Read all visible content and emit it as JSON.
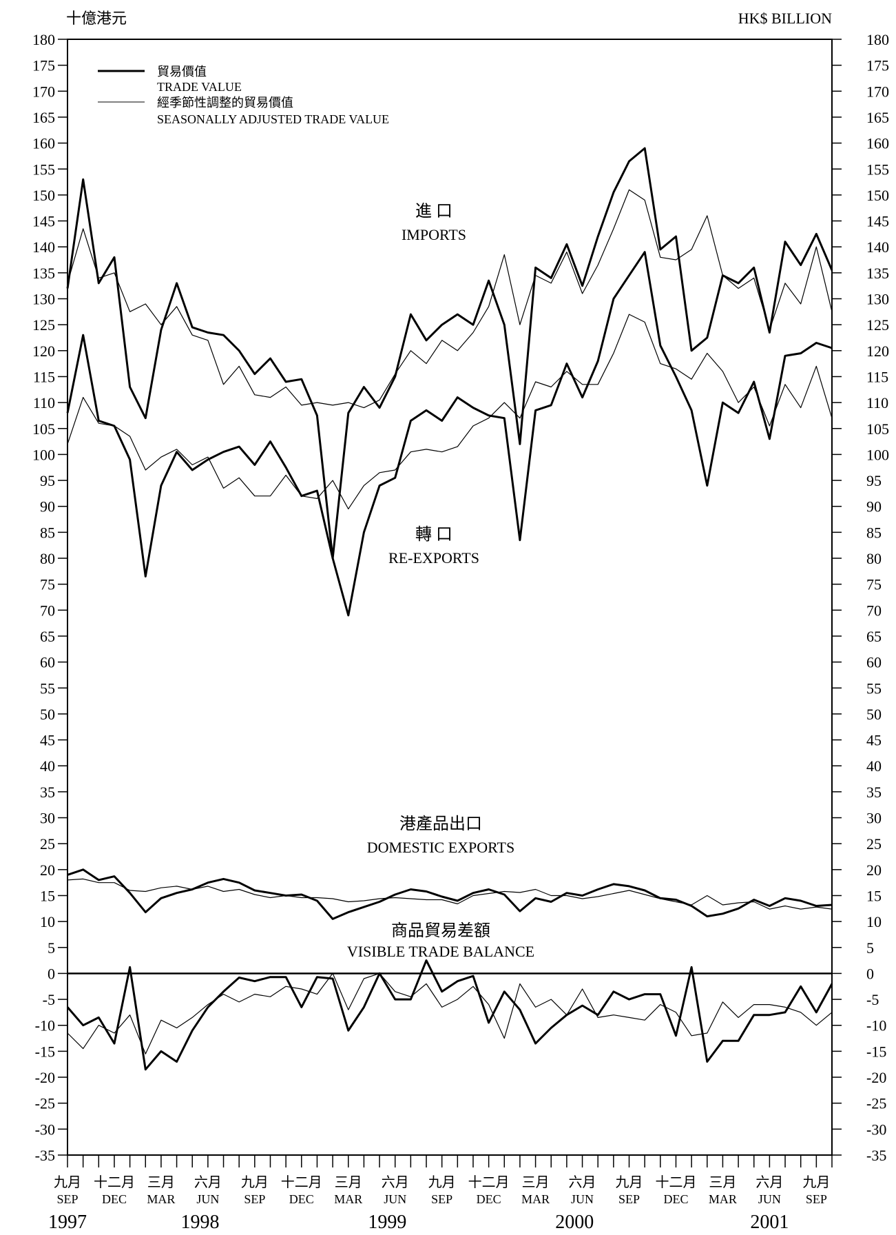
{
  "units": {
    "left": "十億港元",
    "right": "HK$ BILLION"
  },
  "colors": {
    "line": "#000000",
    "background": "#ffffff"
  },
  "legend": {
    "items": [
      {
        "cn": "貿易價值",
        "en": "TRADE VALUE",
        "style": "thick"
      },
      {
        "cn": "經季節性調整的貿易價值",
        "en": "SEASONALLY ADJUSTED TRADE VALUE",
        "style": "thin"
      }
    ]
  },
  "series_labels": {
    "imports": {
      "cn": "進 口",
      "en": "IMPORTS"
    },
    "reexports": {
      "cn": "轉 口",
      "en": "RE-EXPORTS"
    },
    "domestic": {
      "cn": "港產品出口",
      "en": "DOMESTIC EXPORTS"
    },
    "balance": {
      "cn": "商品貿易差額",
      "en": "VISIBLE TRADE BALANCE"
    }
  },
  "x_axis": {
    "month_labels": [
      {
        "index": 0,
        "cn": "九月",
        "en": "SEP"
      },
      {
        "index": 3,
        "cn": "十二月",
        "en": "DEC"
      },
      {
        "index": 6,
        "cn": "三月",
        "en": "MAR"
      },
      {
        "index": 9,
        "cn": "六月",
        "en": "JUN"
      },
      {
        "index": 12,
        "cn": "九月",
        "en": "SEP"
      },
      {
        "index": 15,
        "cn": "十二月",
        "en": "DEC"
      },
      {
        "index": 18,
        "cn": "三月",
        "en": "MAR"
      },
      {
        "index": 21,
        "cn": "六月",
        "en": "JUN"
      },
      {
        "index": 24,
        "cn": "九月",
        "en": "SEP"
      },
      {
        "index": 27,
        "cn": "十二月",
        "en": "DEC"
      },
      {
        "index": 30,
        "cn": "三月",
        "en": "MAR"
      },
      {
        "index": 33,
        "cn": "六月",
        "en": "JUN"
      },
      {
        "index": 36,
        "cn": "九月",
        "en": "SEP"
      },
      {
        "index": 39,
        "cn": "十二月",
        "en": "DEC"
      },
      {
        "index": 42,
        "cn": "三月",
        "en": "MAR"
      },
      {
        "index": 45,
        "cn": "六月",
        "en": "JUN"
      },
      {
        "index": 48,
        "cn": "九月",
        "en": "SEP"
      }
    ],
    "year_labels": [
      {
        "text": "1997",
        "index": 0
      },
      {
        "text": "1998",
        "index": 8.5
      },
      {
        "text": "1999",
        "index": 20.5
      },
      {
        "text": "2000",
        "index": 32.5
      },
      {
        "text": "2001",
        "index": 45
      }
    ]
  },
  "chart_data": {
    "type": "line",
    "x_start": "1997-09",
    "x_end": "2001-10",
    "frequency": "monthly",
    "ylim": [
      -35,
      180
    ],
    "ytick_step": 5,
    "grid": false,
    "legend_position": "top-left",
    "series": [
      {
        "name": "進口 IMPORTS — 貿易價值 TRADE VALUE",
        "style": "thick",
        "values": [
          132.0,
          153.0,
          133.0,
          138.0,
          113.0,
          107.0,
          124.0,
          133.0,
          124.5,
          123.5,
          123.0,
          120.0,
          115.5,
          118.5,
          114.0,
          114.5,
          107.5,
          80.0,
          108.0,
          113.0,
          109.0,
          115.0,
          127.0,
          122.0,
          125.0,
          127.0,
          125.0,
          133.5,
          125.0,
          102.0,
          136.0,
          134.0,
          140.5,
          132.5,
          142.0,
          150.5,
          156.5,
          159.0,
          139.5,
          142.0,
          120.0,
          122.5,
          134.5,
          133.0,
          136.0,
          123.5,
          141.0,
          136.5,
          142.5,
          135.5
        ]
      },
      {
        "name": "進口 IMPORTS — 經季節性調整的貿易價值 SEASONALLY ADJUSTED TRADE VALUE",
        "style": "thin",
        "values": [
          133.0,
          143.5,
          134.0,
          135.0,
          127.5,
          129.0,
          125.0,
          128.5,
          123.0,
          122.0,
          113.5,
          117.0,
          111.5,
          111.0,
          113.0,
          109.5,
          110.0,
          109.5,
          110.0,
          109.0,
          110.5,
          115.5,
          120.0,
          117.5,
          122.0,
          120.0,
          123.5,
          128.5,
          138.5,
          125.0,
          134.5,
          133.0,
          139.0,
          131.0,
          136.5,
          143.5,
          151.0,
          149.0,
          138.0,
          137.5,
          139.5,
          146.0,
          134.5,
          132.0,
          134.0,
          124.0,
          133.0,
          129.0,
          140.0,
          127.5
        ]
      },
      {
        "name": "轉口 RE-EXPORTS — 貿易價值 TRADE VALUE",
        "style": "thick",
        "values": [
          108.0,
          123.0,
          106.5,
          105.5,
          99.0,
          76.5,
          94.0,
          100.5,
          97.0,
          99.0,
          100.5,
          101.5,
          98.0,
          102.5,
          97.5,
          92.0,
          93.0,
          80.0,
          69.0,
          85.0,
          94.0,
          95.5,
          106.5,
          108.5,
          106.5,
          111.0,
          109.0,
          107.5,
          107.0,
          83.5,
          108.5,
          109.5,
          117.5,
          111.0,
          118.0,
          130.0,
          134.5,
          139.0,
          121.0,
          115.0,
          108.5,
          94.0,
          110.0,
          108.0,
          114.0,
          103.0,
          119.0,
          119.5,
          121.5,
          120.5
        ]
      },
      {
        "name": "轉口 RE-EXPORTS — 經季節性調整的貿易價值 SEASONALLY ADJUSTED TRADE VALUE",
        "style": "thin",
        "values": [
          102.0,
          111.0,
          106.0,
          105.5,
          103.5,
          97.0,
          99.5,
          101.0,
          98.0,
          99.5,
          93.5,
          95.5,
          92.0,
          92.0,
          96.0,
          92.0,
          91.5,
          95.0,
          89.5,
          94.0,
          96.5,
          97.0,
          100.5,
          101.0,
          100.5,
          101.5,
          105.5,
          107.0,
          110.0,
          107.0,
          114.0,
          113.0,
          116.0,
          113.5,
          113.5,
          119.5,
          127.0,
          125.5,
          117.5,
          116.5,
          114.5,
          119.5,
          116.0,
          110.0,
          113.0,
          105.5,
          113.5,
          109.0,
          117.0,
          107.0
        ]
      },
      {
        "name": "港產品出口 DOMESTIC EXPORTS — 貿易價值 TRADE VALUE",
        "style": "thick",
        "values": [
          19.0,
          20.0,
          18.0,
          18.7,
          15.5,
          11.8,
          14.5,
          15.5,
          16.2,
          17.5,
          18.2,
          17.5,
          16.0,
          15.5,
          15.0,
          15.2,
          14.0,
          10.5,
          11.8,
          12.8,
          13.8,
          15.2,
          16.2,
          15.8,
          14.8,
          14.0,
          15.5,
          16.2,
          15.2,
          12.0,
          14.5,
          13.8,
          15.5,
          15.0,
          16.2,
          17.2,
          16.8,
          16.0,
          14.5,
          14.2,
          13.0,
          11.0,
          11.5,
          12.5,
          14.2,
          13.0,
          14.5,
          14.0,
          13.0,
          13.2
        ]
      },
      {
        "name": "港產品出口 DOMESTIC EXPORTS — 經季節性調整的貿易價值 SEASONALLY ADJUSTED TRADE VALUE",
        "style": "thin",
        "values": [
          18.0,
          18.2,
          17.5,
          17.5,
          16.0,
          15.8,
          16.5,
          16.8,
          16.2,
          16.8,
          15.8,
          16.2,
          15.2,
          14.6,
          15.0,
          14.6,
          14.6,
          14.4,
          13.8,
          14.0,
          14.4,
          14.6,
          14.4,
          14.2,
          14.2,
          13.4,
          15.0,
          15.4,
          15.8,
          15.6,
          16.2,
          15.0,
          15.0,
          14.4,
          14.8,
          15.4,
          16.0,
          15.2,
          14.4,
          13.8,
          13.2,
          15.0,
          13.2,
          13.6,
          13.8,
          12.4,
          13.0,
          12.4,
          12.8,
          12.4
        ]
      },
      {
        "name": "商品貿易差額 VISIBLE TRADE BALANCE — 貿易價值 TRADE VALUE",
        "style": "thick",
        "values": [
          -6.5,
          -10.0,
          -8.5,
          -13.5,
          1.2,
          -18.5,
          -15.0,
          -17.0,
          -11.0,
          -6.5,
          -3.5,
          -0.8,
          -1.5,
          -0.7,
          -0.7,
          -6.5,
          -0.7,
          -1.0,
          -11.0,
          -6.5,
          0.0,
          -5.0,
          -5.0,
          2.5,
          -3.5,
          -1.5,
          -0.5,
          -9.5,
          -3.5,
          -7.0,
          -13.5,
          -10.5,
          -8.0,
          -6.2,
          -8.0,
          -3.5,
          -5.0,
          -4.0,
          -4.0,
          -12.0,
          1.2,
          -17.0,
          -13.0,
          -13.0,
          -8.0,
          -8.0,
          -7.5,
          -2.5,
          -7.5,
          -2.0
        ]
      },
      {
        "name": "商品貿易差額 VISIBLE TRADE BALANCE — 經季節性調整的貿易價值 SEASONALLY ADJUSTED TRADE VALUE",
        "style": "thin",
        "values": [
          -11.5,
          -14.5,
          -10.0,
          -11.5,
          -8.0,
          -15.5,
          -9.0,
          -10.5,
          -8.5,
          -6.0,
          -4.0,
          -5.5,
          -4.0,
          -4.5,
          -2.5,
          -3.0,
          -4.0,
          0.0,
          -7.0,
          -1.0,
          0.0,
          -3.5,
          -4.5,
          -2.0,
          -6.5,
          -5.0,
          -2.5,
          -6.0,
          -12.5,
          -2.0,
          -6.5,
          -5.0,
          -8.0,
          -3.0,
          -8.5,
          -8.0,
          -8.5,
          -9.0,
          -6.0,
          -7.5,
          -12.0,
          -11.5,
          -5.5,
          -8.5,
          -6.0,
          -6.0,
          -6.5,
          -7.5,
          -10.0,
          -7.5
        ]
      }
    ]
  }
}
